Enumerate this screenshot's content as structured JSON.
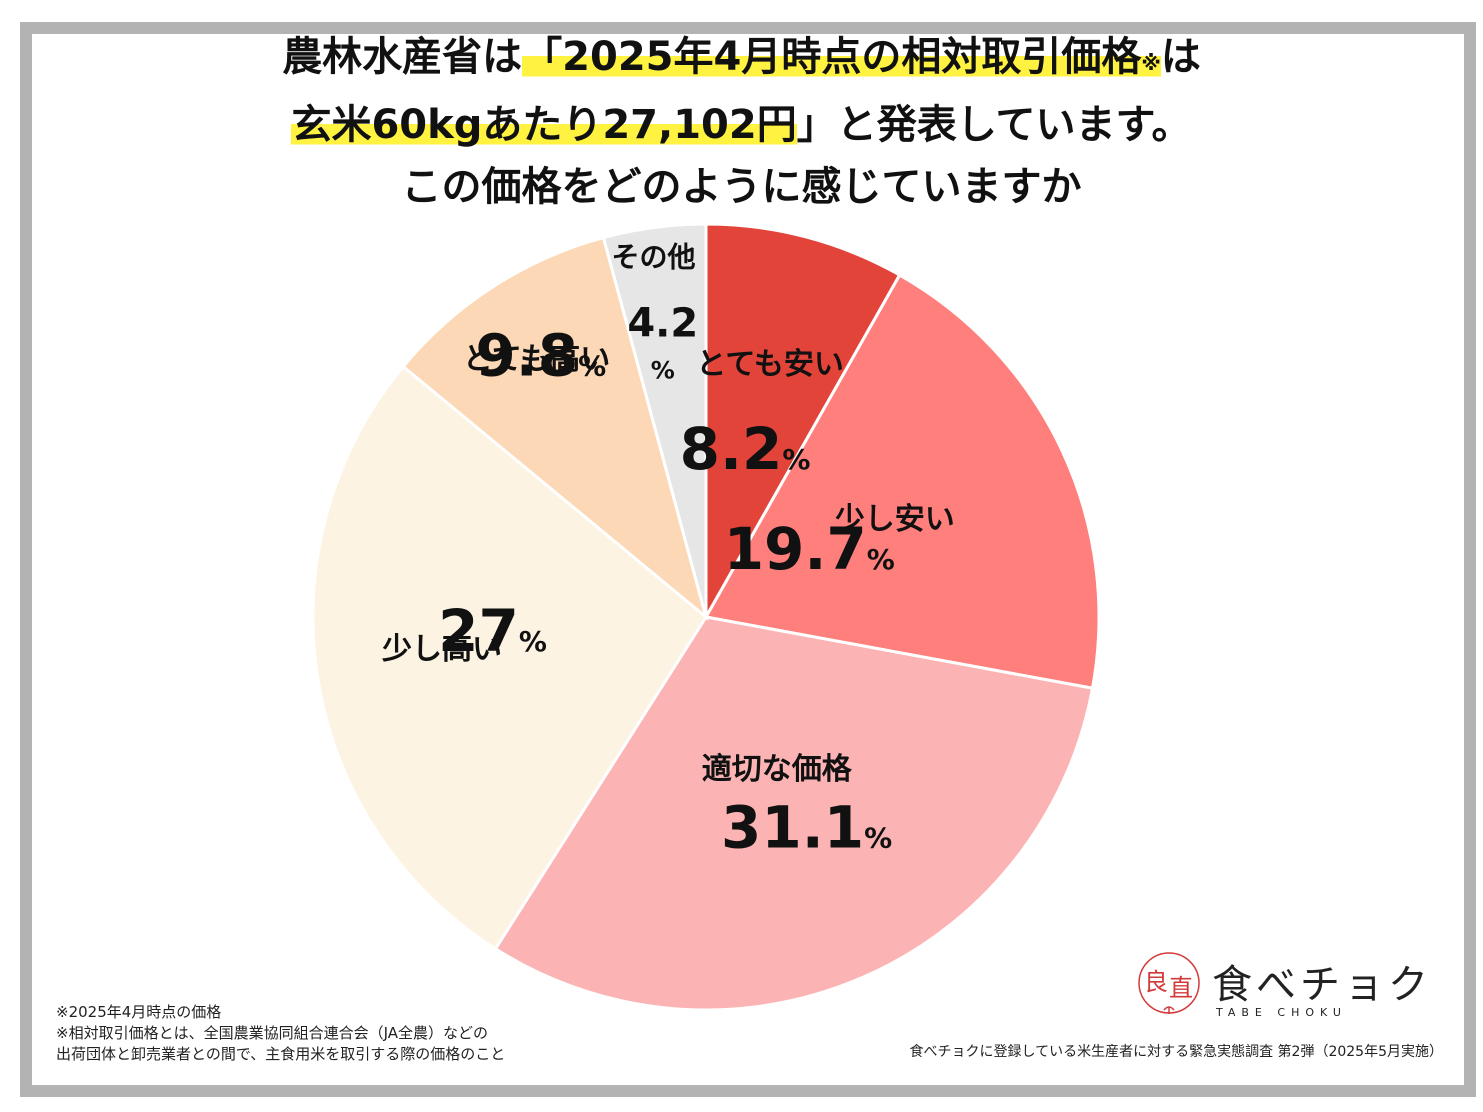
{
  "title": {
    "line1_pre": "農林水産省は",
    "line1_hl": "「2025年4月時点の相対取引価格",
    "line1_mark": "※",
    "line1_post": "は",
    "line2_hl": "玄米60kgあたり27,102円",
    "line2_post": "」と発表しています。",
    "line3": "この価格をどのように感じていますか"
  },
  "chart_data": {
    "type": "pie",
    "start": "12 o'clock, clockwise",
    "unit": "%",
    "slices": [
      {
        "label": "とても安い",
        "value": 8.2,
        "display": "8.2",
        "color": "#e2443a"
      },
      {
        "label": "少し安い",
        "value": 19.7,
        "display": "19.7",
        "color": "#fe7f7c"
      },
      {
        "label": "適切な価格",
        "value": 31.1,
        "display": "31.1",
        "color": "#fcb3b4"
      },
      {
        "label": "少し高い",
        "value": 27,
        "display": "27",
        "color": "#fcf3e2"
      },
      {
        "label": "とても高い",
        "value": 9.8,
        "display": "9.8",
        "color": "#fcd8b7"
      },
      {
        "label": "その他",
        "value": 4.2,
        "display": "4.2",
        "color": "#e6e6e6"
      }
    ]
  },
  "footnotes": [
    "※2025年4月時点の価格",
    "※相対取引価格とは、全国農業協同組合連合会（JA全農）などの",
    "出荷団体と卸売業者との間で、主食用米を取引する際の価格のこと"
  ],
  "survey_note": "食べチョクに登録している米生産者に対する緊急実態調査 第2弾（2025年5月実施）",
  "logo": {
    "name": "食べチョク",
    "sub": "TABE CHOKU",
    "mark_chars": [
      "良",
      "直"
    ],
    "mark_color": "#d23a3a"
  }
}
